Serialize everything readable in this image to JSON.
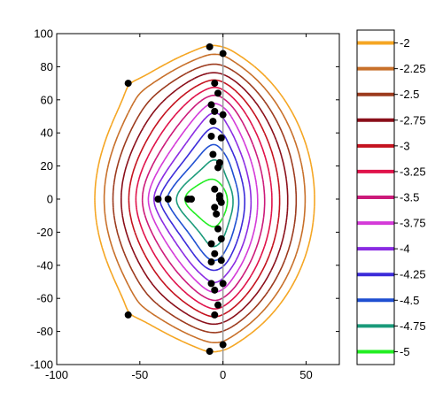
{
  "chart_data": {
    "type": "contour",
    "xlim": [
      -100,
      70
    ],
    "ylim": [
      -100,
      100
    ],
    "x_ticks": [
      -100,
      -50,
      0,
      50
    ],
    "y_ticks": [
      -100,
      -80,
      -60,
      -40,
      -20,
      0,
      20,
      40,
      60,
      80,
      100
    ],
    "vertical_reference_line_x": 0,
    "grid": false,
    "colorbar": {
      "placement": "right",
      "levels": [
        {
          "label": "-2",
          "value": -2,
          "color": "#f5a623"
        },
        {
          "label": "-2.25",
          "value": -2.25,
          "color": "#c8702a"
        },
        {
          "label": "-2.5",
          "value": -2.5,
          "color": "#9c3b1e"
        },
        {
          "label": "-2.75",
          "value": -2.75,
          "color": "#8a0f1a"
        },
        {
          "label": "-3",
          "value": -3,
          "color": "#c4121e"
        },
        {
          "label": "-3.25",
          "value": -3.25,
          "color": "#e0124a"
        },
        {
          "label": "-3.5",
          "value": -3.5,
          "color": "#cc1a7a"
        },
        {
          "label": "-3.75",
          "value": -3.75,
          "color": "#d43ad8"
        },
        {
          "label": "-4",
          "value": -4,
          "color": "#8a2be2"
        },
        {
          "label": "-4.25",
          "value": -4.25,
          "color": "#3b2bd9"
        },
        {
          "label": "-4.5",
          "value": -4.5,
          "color": "#1f4fd1"
        },
        {
          "label": "-4.75",
          "value": -4.75,
          "color": "#1a9a7a"
        },
        {
          "label": "-5",
          "value": -5,
          "color": "#22ee22"
        }
      ]
    },
    "points": [
      [
        -8,
        92
      ],
      [
        0,
        88
      ],
      [
        -5,
        70
      ],
      [
        -3,
        64
      ],
      [
        -7,
        57
      ],
      [
        -5,
        53
      ],
      [
        -6,
        47
      ],
      [
        0,
        51
      ],
      [
        -7,
        38
      ],
      [
        -1,
        37
      ],
      [
        -6,
        27
      ],
      [
        -2,
        22
      ],
      [
        -3,
        19
      ],
      [
        -5,
        6
      ],
      [
        -2,
        2
      ],
      [
        -5,
        -5
      ],
      [
        -1,
        -2
      ],
      [
        -7,
        -27
      ],
      [
        -1,
        -24
      ],
      [
        -3,
        -18
      ],
      [
        -4,
        -9
      ],
      [
        -5,
        -33
      ],
      [
        -7,
        -38
      ],
      [
        -1,
        -37
      ],
      [
        -7,
        -51
      ],
      [
        -5,
        -55
      ],
      [
        0,
        -51
      ],
      [
        -3,
        -64
      ],
      [
        -5,
        -70
      ],
      [
        -8,
        -92
      ],
      [
        0,
        -88
      ],
      [
        -57,
        70
      ],
      [
        -57,
        -70
      ],
      [
        -39,
        0
      ],
      [
        -33,
        0
      ],
      [
        -21,
        0
      ],
      [
        -19,
        0
      ],
      [
        -2,
        0
      ]
    ]
  }
}
